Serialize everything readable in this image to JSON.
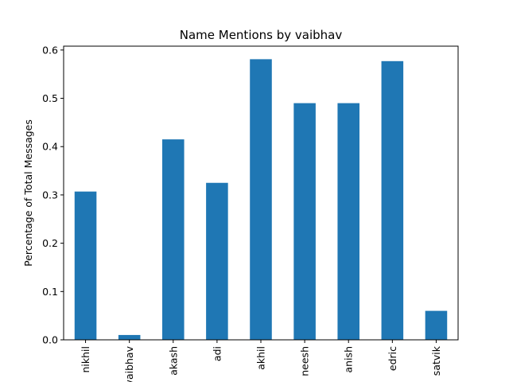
{
  "chart_data": {
    "type": "bar",
    "title": "Name Mentions by vaibhav",
    "xlabel": "",
    "ylabel": "Percentage of Total Messages",
    "categories": [
      "nikhil",
      "vaibhav",
      "akash",
      "adi",
      "akhil",
      "neesh",
      "anish",
      "edric",
      "satvik"
    ],
    "values": [
      0.307,
      0.01,
      0.415,
      0.325,
      0.581,
      0.49,
      0.49,
      0.577,
      0.06
    ],
    "ylim": [
      0,
      0.608
    ],
    "yticks": [
      0.0,
      0.1,
      0.2,
      0.3,
      0.4,
      0.5,
      0.6
    ],
    "ytick_labels": [
      "0.0",
      "0.1",
      "0.2",
      "0.3",
      "0.4",
      "0.5",
      "0.6"
    ],
    "bar_color": "#1f77b4",
    "grid": false,
    "legend": "none"
  }
}
